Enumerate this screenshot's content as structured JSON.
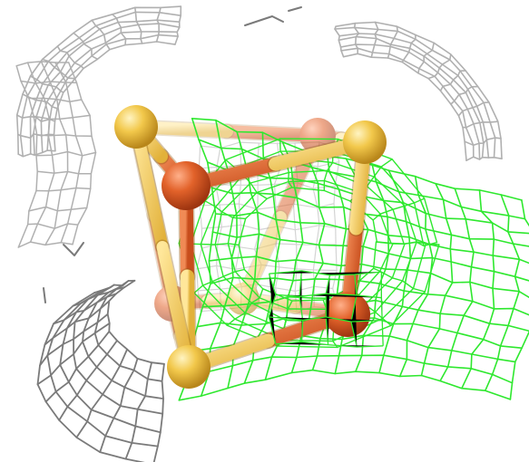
{
  "scene": {
    "background_color": "#ffffff",
    "grey_mesh_color": "#b0b0b0",
    "grey_mesh_dark_color": "#7a7a7a",
    "green_mesh_color": "#2ee82e",
    "sulfur_color": "#f2c84b",
    "iron_color": "#e2622a",
    "atoms": [
      {
        "element": "S",
        "label": "sulfur-atom-top-left"
      },
      {
        "element": "S",
        "label": "sulfur-atom-top-right"
      },
      {
        "element": "S",
        "label": "sulfur-atom-bottom-left"
      },
      {
        "element": "S",
        "label": "sulfur-atom-back"
      },
      {
        "element": "Fe",
        "label": "iron-atom-front"
      },
      {
        "element": "Fe",
        "label": "iron-atom-bottom-right"
      },
      {
        "element": "Fe",
        "label": "iron-atom-back-top"
      },
      {
        "element": "Fe",
        "label": "iron-atom-back-bottom"
      }
    ]
  }
}
